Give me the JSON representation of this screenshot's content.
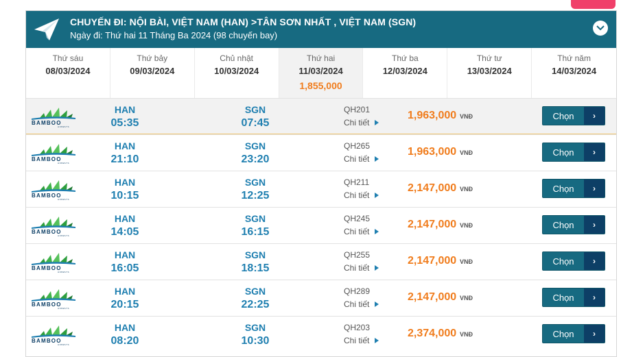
{
  "header": {
    "route": "CHUYẾN ĐI: NỘI BÀI, VIỆT NAM (HAN) >TÂN SƠN NHẤT , VIỆT NAM (SGN)",
    "date_line": "Ngày đi: Thứ hai 11 Tháng Ba 2024 (98 chuyến bay)",
    "icons": {
      "plane": "paper-plane-icon",
      "collapse": "chevron-down-icon"
    }
  },
  "dates": [
    {
      "day": "Thứ sáu",
      "date": "08/03/2024",
      "price": ""
    },
    {
      "day": "Thứ bảy",
      "date": "09/03/2024",
      "price": ""
    },
    {
      "day": "Chủ nhật",
      "date": "10/03/2024",
      "price": ""
    },
    {
      "day": "Thứ hai",
      "date": "11/03/2024",
      "price": "1,855,000"
    },
    {
      "day": "Thứ ba",
      "date": "12/03/2024",
      "price": ""
    },
    {
      "day": "Thứ tư",
      "date": "13/03/2024",
      "price": ""
    },
    {
      "day": "Thứ năm",
      "date": "14/03/2024",
      "price": ""
    }
  ],
  "labels": {
    "detail": "Chi tiết",
    "currency": "VNĐ",
    "select": "Chọn",
    "select_arrow": "›"
  },
  "flights": [
    {
      "from": "HAN",
      "dep": "05:35",
      "to": "SGN",
      "arr": "07:45",
      "flight": "QH201",
      "price": "1,963,000"
    },
    {
      "from": "HAN",
      "dep": "21:10",
      "to": "SGN",
      "arr": "23:20",
      "flight": "QH265",
      "price": "1,963,000"
    },
    {
      "from": "HAN",
      "dep": "10:15",
      "to": "SGN",
      "arr": "12:25",
      "flight": "QH211",
      "price": "2,147,000"
    },
    {
      "from": "HAN",
      "dep": "14:05",
      "to": "SGN",
      "arr": "16:15",
      "flight": "QH245",
      "price": "2,147,000"
    },
    {
      "from": "HAN",
      "dep": "16:05",
      "to": "SGN",
      "arr": "18:15",
      "flight": "QH255",
      "price": "2,147,000"
    },
    {
      "from": "HAN",
      "dep": "20:15",
      "to": "SGN",
      "arr": "22:25",
      "flight": "QH289",
      "price": "2,147,000"
    },
    {
      "from": "HAN",
      "dep": "08:20",
      "to": "SGN",
      "arr": "10:30",
      "flight": "QH203",
      "price": "2,374,000"
    }
  ],
  "colors": {
    "header": "#176a81",
    "accent_blue": "#1f7fb0",
    "price_orange": "#f07c1c",
    "button_arrow": "#0d3f66"
  }
}
